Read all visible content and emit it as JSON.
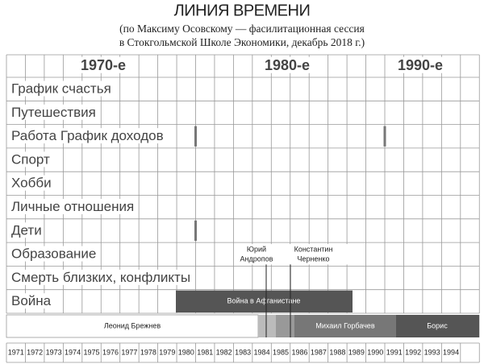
{
  "header": {
    "title": "ЛИНИЯ ВРЕМЕНИ",
    "subtitle": [
      "(по Максиму Осовскому — фасилитационная сессия",
      "в Стокгольмской Школе Экономики, декабрь 2018 г.)"
    ]
  },
  "decades": [
    "1970-е",
    "1980-е",
    "1990-е"
  ],
  "rows": [
    "График счастья",
    "Путешествия",
    "Работа График доходов",
    "Спорт",
    "Хобби",
    "Личные отношения",
    "Дети",
    "Образование",
    "Смерть близких, конфликты",
    "Война"
  ],
  "events": [
    "Война в Афганистане"
  ],
  "annotations": [
    [
      "Юрий",
      "Андропов"
    ],
    [
      "Константин",
      "Черненко"
    ]
  ],
  "leaders": [
    "Леонид Брежнев",
    "Михаил Горбачев",
    "Борис"
  ],
  "years": [
    "1971",
    "1972",
    "1973",
    "1974",
    "1975",
    "1976",
    "1977",
    "1978",
    "1979",
    "1980",
    "1981",
    "1982",
    "1983",
    "1984",
    "1985",
    "1986",
    "1987",
    "1988",
    "1989",
    "1990",
    "1991",
    "1992",
    "1993",
    "1994"
  ]
}
